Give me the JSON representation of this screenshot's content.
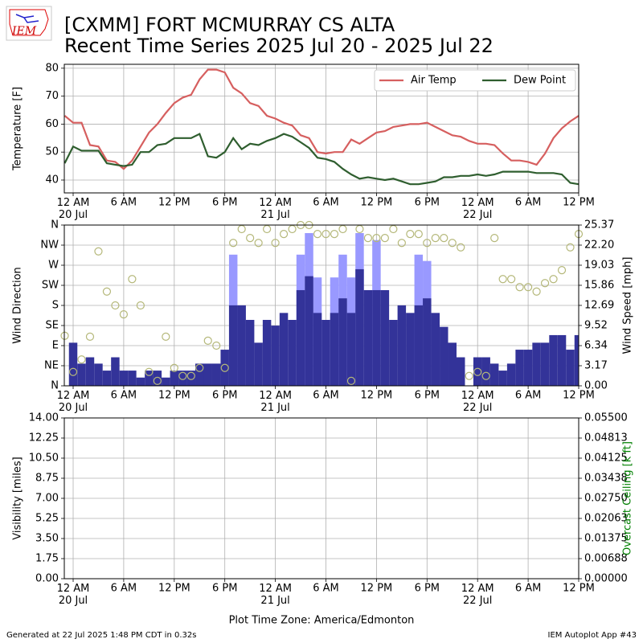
{
  "header": {
    "title": "[CXMM] FORT MCMURRAY CS  ALTA",
    "subtitle": "Recent Time Series 2025 Jul 20 - 2025 Jul 22",
    "logo_text": "IEM"
  },
  "footer": {
    "generated": "Generated at 22 Jul 2025 1:48 PM CDT in 0.32s",
    "app": "IEM Autoplot App #43"
  },
  "chart_data": [
    {
      "type": "line",
      "ylabel": "Temperature [F]",
      "grid": true,
      "legend": "upper-right",
      "xlim": [
        -1.05,
        60
      ],
      "ylim": [
        35.4,
        81.4
      ],
      "yticks": [
        40,
        50,
        60,
        70,
        80
      ],
      "xticks": [
        {
          "value": 0,
          "label": "12 AM\n20 Jul"
        },
        {
          "value": 6,
          "label": "6 AM"
        },
        {
          "value": 12,
          "label": "12 PM"
        },
        {
          "value": 18,
          "label": "6 PM"
        },
        {
          "value": 24,
          "label": "12 AM\n21 Jul"
        },
        {
          "value": 30,
          "label": "6 AM"
        },
        {
          "value": 36,
          "label": "12 PM"
        },
        {
          "value": 42,
          "label": "6 PM"
        },
        {
          "value": 48,
          "label": "12 AM\n22 Jul"
        },
        {
          "value": 54,
          "label": "6 AM"
        },
        {
          "value": 60,
          "label": "12 PM"
        }
      ],
      "x": [
        -1,
        0,
        1,
        2,
        3,
        4,
        5,
        6,
        7,
        8,
        9,
        10,
        11,
        12,
        13,
        14,
        15,
        16,
        17,
        18,
        19,
        20,
        21,
        22,
        23,
        24,
        25,
        26,
        27,
        28,
        29,
        30,
        31,
        32,
        33,
        34,
        35,
        36,
        37,
        38,
        39,
        40,
        41,
        42,
        43,
        44,
        45,
        46,
        47,
        48,
        49,
        50,
        51,
        52,
        53,
        54,
        55,
        56,
        57,
        58,
        59,
        60
      ],
      "series": [
        {
          "name": "Air Temp",
          "color": "#d65f5f",
          "values": [
            63,
            60.5,
            60.5,
            52.5,
            52,
            47,
            46.5,
            44,
            47,
            52,
            57,
            60,
            64,
            67.5,
            69.5,
            70.5,
            76,
            79.5,
            79.5,
            78.5,
            73,
            71,
            67.5,
            66.5,
            63,
            62,
            60.5,
            59.5,
            56,
            55,
            50,
            49.5,
            50,
            50,
            54.5,
            53,
            55,
            57,
            57.5,
            59,
            59.5,
            60,
            60,
            60.5,
            59,
            57.5,
            56,
            55.5,
            54,
            53,
            53,
            52.5,
            49.5,
            47,
            47,
            46.5,
            45.5,
            49.5,
            55,
            58.5,
            61,
            63
          ]
        },
        {
          "name": "Dew Point",
          "color": "#2f5e2f",
          "values": [
            46,
            52,
            50.5,
            50.5,
            50.5,
            46,
            45.5,
            45,
            45.5,
            50,
            50,
            52.5,
            53,
            55,
            55,
            55,
            56.5,
            48.5,
            48,
            50,
            55,
            51,
            53,
            52.5,
            54,
            55,
            56.5,
            55.5,
            53.5,
            51.5,
            48,
            47.5,
            46.5,
            44,
            42,
            40.5,
            41,
            40.5,
            40,
            40.5,
            39.5,
            38.5,
            38.5,
            39,
            39.5,
            41,
            41,
            41.5,
            41.5,
            42,
            41.5,
            42,
            43,
            43,
            43,
            43,
            42.5,
            42.5,
            42.5,
            42,
            39,
            38.5
          ]
        }
      ]
    },
    {
      "type": "wind",
      "ylabel": "Wind Direction",
      "y2label": "Wind Speed [mph]",
      "grid": true,
      "xlim": [
        -1.05,
        60
      ],
      "ylim": [
        0,
        360
      ],
      "yticks": [
        {
          "value": 0,
          "label": "N"
        },
        {
          "value": 45,
          "label": "NE"
        },
        {
          "value": 90,
          "label": "E"
        },
        {
          "value": 135,
          "label": "SE"
        },
        {
          "value": 180,
          "label": "S"
        },
        {
          "value": 225,
          "label": "SW"
        },
        {
          "value": 270,
          "label": "W"
        },
        {
          "value": 315,
          "label": "NW"
        },
        {
          "value": 360,
          "label": "N"
        }
      ],
      "y2lim": [
        0,
        25.37
      ],
      "y2ticks": [
        {
          "value": 0,
          "label": "0.00"
        },
        3.17,
        6.34,
        9.52,
        12.69,
        15.86,
        19.03,
        {
          "value": 22.2,
          "label": "22.20"
        },
        25.37
      ],
      "xticks": [
        {
          "value": 0,
          "label": "12 AM\n20 Jul"
        },
        {
          "value": 6,
          "label": "6 AM"
        },
        {
          "value": 12,
          "label": "12 PM"
        },
        {
          "value": 18,
          "label": "6 PM"
        },
        {
          "value": 24,
          "label": "12 AM\n21 Jul"
        },
        {
          "value": 30,
          "label": "6 AM"
        },
        {
          "value": 36,
          "label": "12 PM"
        },
        {
          "value": 42,
          "label": "6 PM"
        },
        {
          "value": 48,
          "label": "12 AM\n22 Jul"
        },
        {
          "value": 54,
          "label": "6 AM"
        },
        {
          "value": 60,
          "label": "12 PM"
        }
      ],
      "x": [
        -1,
        0,
        1,
        2,
        3,
        4,
        5,
        6,
        7,
        8,
        9,
        10,
        11,
        12,
        13,
        14,
        15,
        16,
        17,
        18,
        19,
        20,
        21,
        22,
        23,
        24,
        25,
        26,
        27,
        28,
        29,
        30,
        31,
        32,
        33,
        34,
        35,
        36,
        37,
        38,
        39,
        40,
        41,
        42,
        43,
        44,
        45,
        46,
        47,
        48,
        49,
        50,
        51,
        52,
        53,
        54,
        55,
        56,
        57,
        58,
        59,
        60
      ],
      "direction": {
        "color": "#b5b87a",
        "values": [
          112,
          31,
          59,
          110,
          301,
          211,
          180,
          160,
          239,
          180,
          31,
          11,
          110,
          40,
          22,
          22,
          40,
          101,
          90,
          40,
          320,
          351,
          331,
          320,
          351,
          320,
          340,
          351,
          360,
          360,
          340,
          340,
          340,
          351,
          11,
          351,
          331,
          331,
          331,
          351,
          320,
          340,
          340,
          320,
          331,
          331,
          320,
          310,
          22,
          31,
          22,
          331,
          239,
          239,
          221,
          221,
          211,
          230,
          239,
          259,
          310,
          340
        ]
      },
      "speed": {
        "color": "#333399",
        "values": [
          0,
          6.8,
          3.5,
          4.5,
          3.5,
          2.4,
          4.5,
          2.4,
          2.4,
          1.3,
          2.4,
          2.4,
          1.3,
          2.4,
          2.4,
          2.4,
          3.5,
          3.5,
          3.5,
          5.7,
          12.7,
          12.7,
          10.4,
          6.8,
          10.4,
          9.5,
          11.5,
          10.4,
          15.1,
          17.3,
          11.5,
          10.4,
          11.5,
          13.8,
          11.5,
          18.4,
          15.1,
          15.1,
          15.1,
          10.4,
          12.7,
          11.5,
          12.7,
          13.8,
          11.5,
          9.3,
          6.8,
          4.5,
          0,
          4.5,
          4.5,
          3.5,
          2.4,
          3.5,
          5.7,
          5.7,
          6.8,
          6.8,
          8.0,
          8.0,
          5.7,
          8.0
        ]
      },
      "gust": {
        "color": "#9999ff",
        "values": [
          null,
          null,
          null,
          null,
          null,
          null,
          null,
          null,
          null,
          null,
          null,
          null,
          null,
          null,
          null,
          null,
          null,
          null,
          null,
          null,
          20.7,
          null,
          null,
          null,
          null,
          null,
          null,
          null,
          20.7,
          24.1,
          17.1,
          null,
          17.1,
          20.7,
          17.1,
          24.1,
          null,
          23.0,
          null,
          null,
          null,
          null,
          20.7,
          19.7,
          null,
          null,
          null,
          null,
          null,
          null,
          null,
          null,
          null,
          null,
          null,
          null,
          null,
          null,
          null,
          null,
          null,
          null
        ]
      }
    },
    {
      "type": "line",
      "ylabel": "Visibility [miles]",
      "y2label": "Overcast Ceiling [k ft]",
      "y2color": "#008000",
      "xlabel": "Plot Time Zone: America/Edmonton",
      "grid": true,
      "xlim": [
        -1.05,
        60
      ],
      "ylim": [
        0,
        14
      ],
      "yticks": [
        {
          "value": 0,
          "label": "0.00"
        },
        1.75,
        {
          "value": 3.5,
          "label": "3.50"
        },
        5.25,
        {
          "value": 7,
          "label": "7.00"
        },
        8.75,
        {
          "value": 10.5,
          "label": "10.50"
        },
        12.25,
        {
          "value": 14,
          "label": "14.00"
        }
      ],
      "y2lim": [
        0,
        0.055
      ],
      "y2ticks": [
        {
          "value": 0,
          "label": "0.00000"
        },
        {
          "value": 0.006875,
          "label": "0.00688"
        },
        {
          "value": 0.01375,
          "label": "0.01375"
        },
        {
          "value": 0.020625,
          "label": "0.02063"
        },
        {
          "value": 0.0275,
          "label": "0.02750"
        },
        {
          "value": 0.034375,
          "label": "0.03438"
        },
        {
          "value": 0.04125,
          "label": "0.04125"
        },
        {
          "value": 0.048125,
          "label": "0.04813"
        },
        {
          "value": 0.055,
          "label": "0.05500"
        }
      ],
      "xticks": [
        {
          "value": 0,
          "label": "12 AM\n20 Jul"
        },
        {
          "value": 6,
          "label": "6 AM"
        },
        {
          "value": 12,
          "label": "12 PM"
        },
        {
          "value": 18,
          "label": "6 PM"
        },
        {
          "value": 24,
          "label": "12 AM\n21 Jul"
        },
        {
          "value": 30,
          "label": "6 AM"
        },
        {
          "value": 36,
          "label": "12 PM"
        },
        {
          "value": 42,
          "label": "6 PM"
        },
        {
          "value": 48,
          "label": "12 AM\n22 Jul"
        },
        {
          "value": 54,
          "label": "6 AM"
        },
        {
          "value": 60,
          "label": "12 PM"
        }
      ],
      "series": []
    }
  ]
}
